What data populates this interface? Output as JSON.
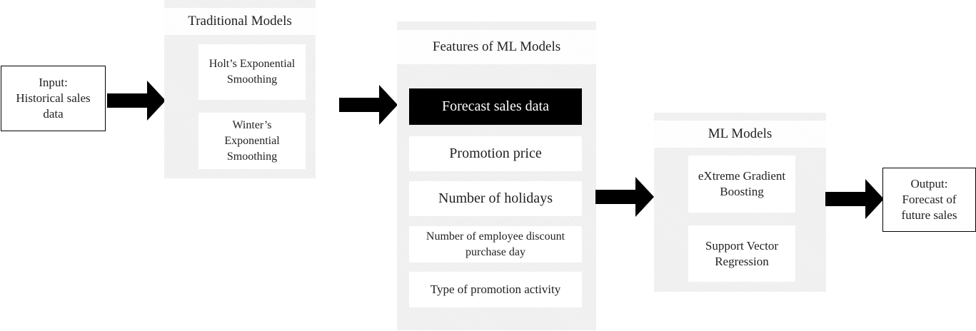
{
  "input_box": {
    "text": "Input:\nHistorical sales\ndata"
  },
  "traditional": {
    "title": "Traditional Models",
    "items": [
      "Holt’s Exponential\nSmoothing",
      "Winter’s\nExponential\nSmoothing"
    ]
  },
  "features": {
    "title": "Features of ML Models",
    "items": [
      "Forecast sales data",
      "Promotion price",
      "Number of holidays",
      "Number of employee discount\npurchase day",
      "Type of promotion activity"
    ]
  },
  "ml_models": {
    "title": "ML Models",
    "items": [
      "eXtreme Gradient\nBoosting",
      "Support Vector\nRegression"
    ]
  },
  "output_box": {
    "text": "Output:\nForecast of\nfuture sales"
  },
  "colors": {
    "arrow": "#000000",
    "panel": "#f2f2f2",
    "highlight": "#000000"
  },
  "icons": [
    "arrow-right-icon"
  ]
}
